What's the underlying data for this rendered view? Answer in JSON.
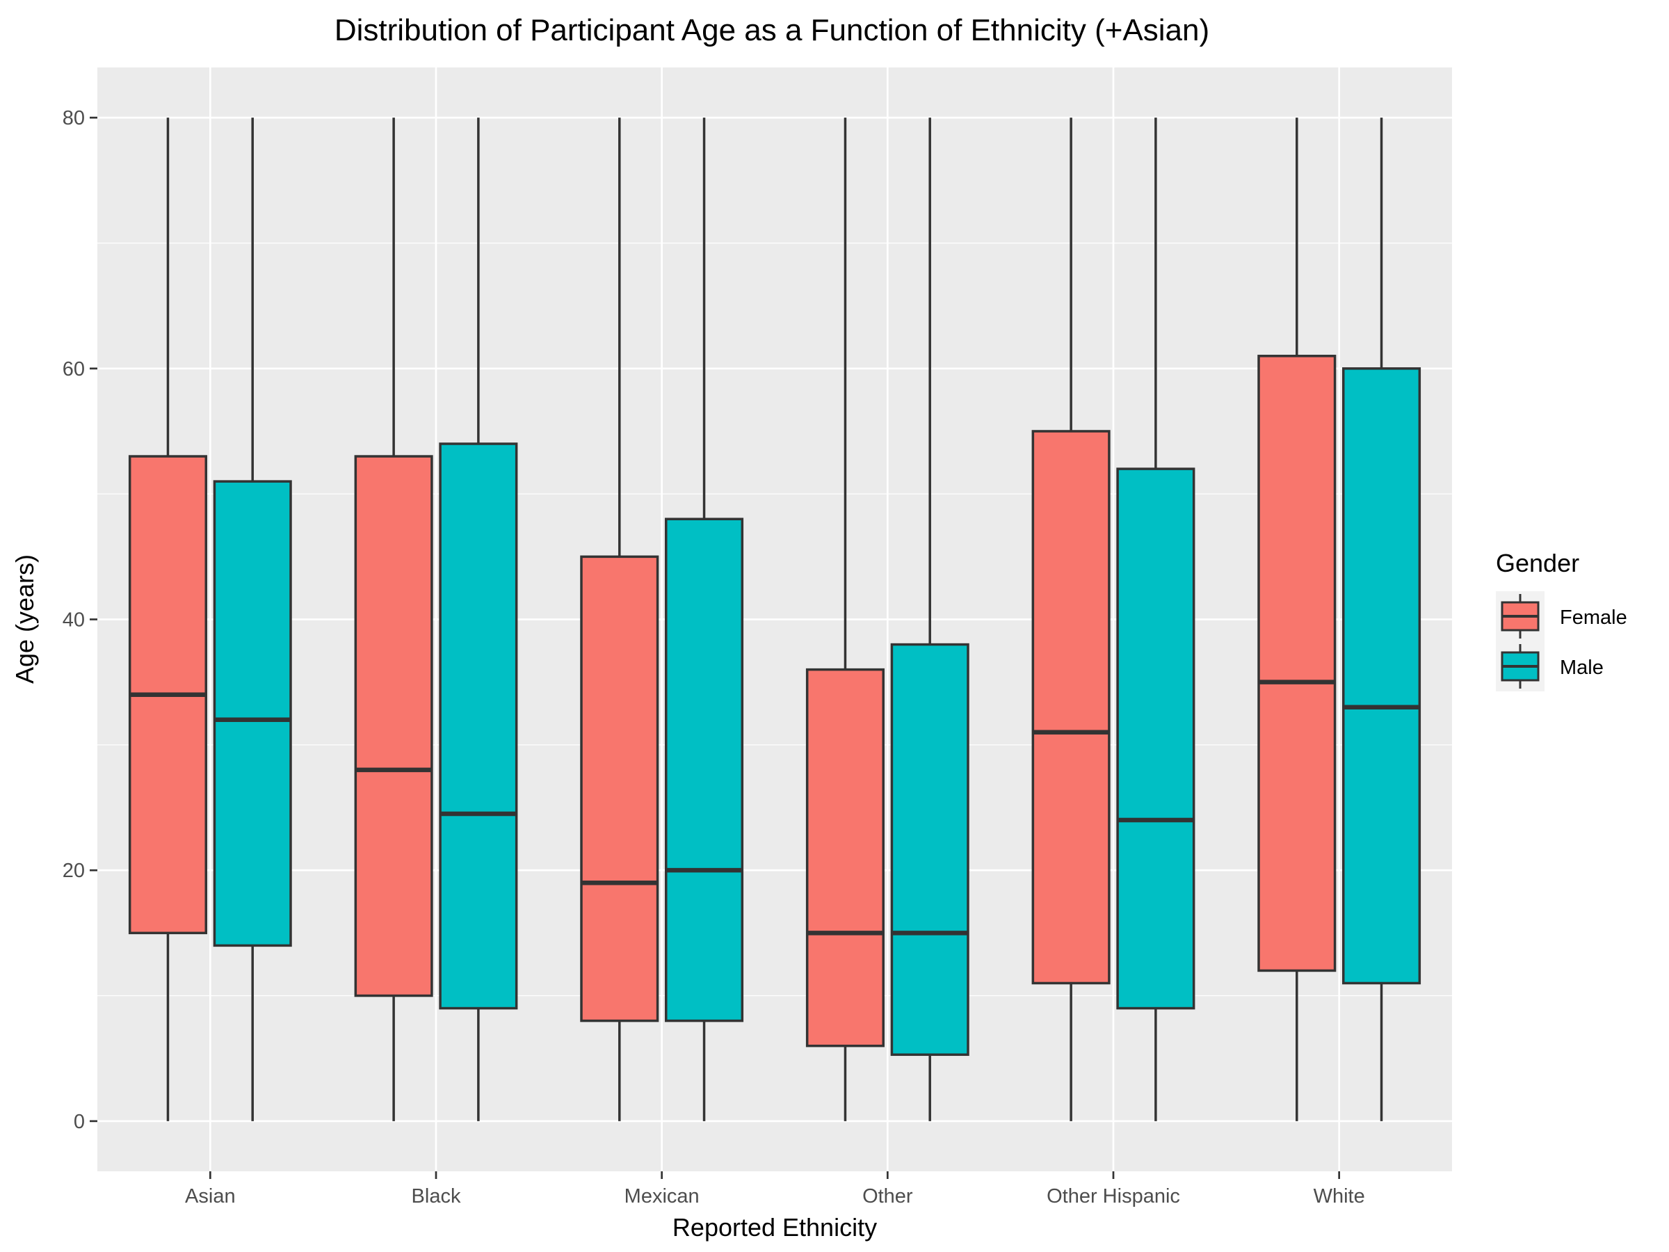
{
  "chart_data": {
    "type": "boxplot",
    "title": "Distribution of Participant Age as a Function of Ethnicity (+Asian)",
    "xlabel": "Reported Ethnicity",
    "ylabel": "Age (years)",
    "ylim": [
      -4,
      84
    ],
    "yticks": [
      0,
      20,
      40,
      60,
      80
    ],
    "grid": true,
    "legend": {
      "title": "Gender",
      "position": "right"
    },
    "categories": [
      "Asian",
      "Black",
      "Mexican",
      "Other",
      "Other Hispanic",
      "White"
    ],
    "series": [
      {
        "name": "Female",
        "color": "#F8766D",
        "boxes": [
          {
            "min": 0,
            "q1": 15,
            "median": 34,
            "q3": 53,
            "max": 80
          },
          {
            "min": 0,
            "q1": 10,
            "median": 28,
            "q3": 53,
            "max": 80
          },
          {
            "min": 0,
            "q1": 8,
            "median": 19,
            "q3": 45,
            "max": 80
          },
          {
            "min": 0,
            "q1": 6,
            "median": 15,
            "q3": 36,
            "max": 80
          },
          {
            "min": 0,
            "q1": 11,
            "median": 31,
            "q3": 55,
            "max": 80
          },
          {
            "min": 0,
            "q1": 12,
            "median": 35,
            "q3": 61,
            "max": 80
          }
        ]
      },
      {
        "name": "Male",
        "color": "#00BFC4",
        "boxes": [
          {
            "min": 0,
            "q1": 14,
            "median": 32,
            "q3": 51,
            "max": 80
          },
          {
            "min": 0,
            "q1": 9,
            "median": 24.5,
            "q3": 54,
            "max": 80
          },
          {
            "min": 0,
            "q1": 8,
            "median": 20,
            "q3": 48,
            "max": 80
          },
          {
            "min": 0,
            "q1": 5.3,
            "median": 15,
            "q3": 38,
            "max": 80
          },
          {
            "min": 0,
            "q1": 9,
            "median": 24,
            "q3": 52,
            "max": 80
          },
          {
            "min": 0,
            "q1": 11,
            "median": 33,
            "q3": 60,
            "max": 80
          }
        ]
      }
    ]
  }
}
